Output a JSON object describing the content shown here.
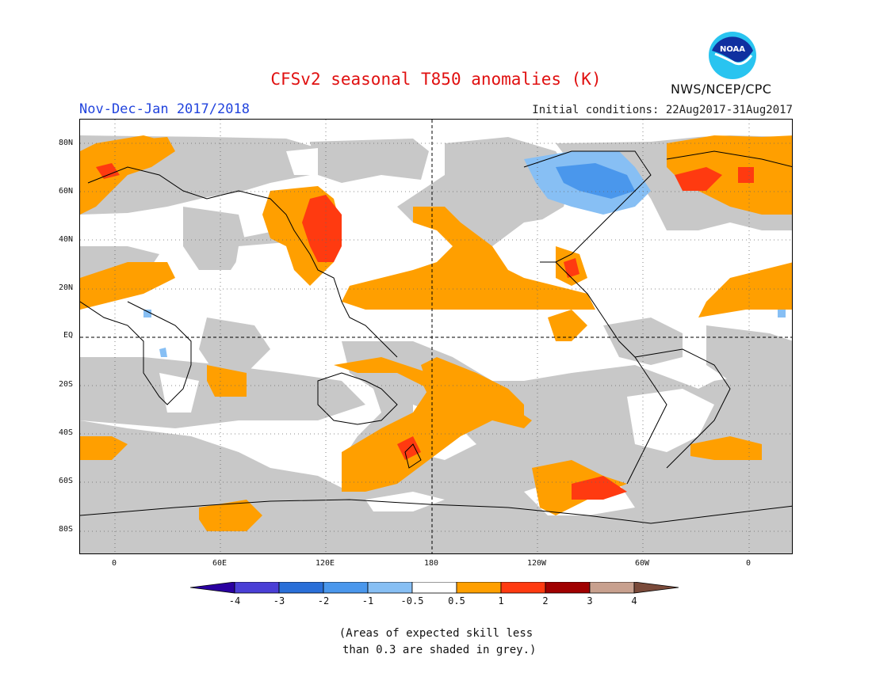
{
  "title": "CFSv2 seasonal T850 anomalies (K)",
  "season": "Nov-Dec-Jan 2017/2018",
  "initial_conditions": "Initial conditions: 22Aug2017-31Aug2017",
  "organization": "NWS/NCEP/CPC",
  "logo_text": "NOAA",
  "lat_labels": [
    "80N",
    "60N",
    "40N",
    "20N",
    "EQ",
    "20S",
    "40S",
    "60S",
    "80S"
  ],
  "lon_labels": [
    "0",
    "60E",
    "120E",
    "180",
    "120W",
    "60W",
    "0"
  ],
  "colorbar": {
    "labels": [
      "-4",
      "-3",
      "-2",
      "-1",
      "-0.5",
      "0.5",
      "1",
      "2",
      "3",
      "4"
    ],
    "colors": [
      "#2a00a0",
      "#4a3fd6",
      "#2a6fd8",
      "#4a97ec",
      "#87bff4",
      "#ffffff",
      "#ff9f00",
      "#ff3a10",
      "#a00000",
      "#c8a08e",
      "#7a4a3a"
    ]
  },
  "note": "(Areas of expected skill less\n than 0.3 are shaded in grey.)",
  "colors": {
    "grey": "#c8c8c8",
    "orange": "#ff9f00",
    "red": "#ff3a10",
    "blue_light": "#87bff4",
    "blue_mid": "#4a97ec"
  }
}
